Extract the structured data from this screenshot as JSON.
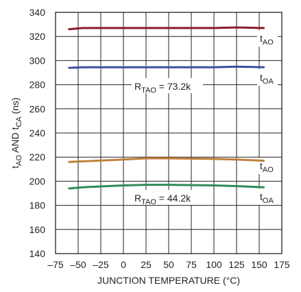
{
  "chart_data": {
    "type": "line",
    "xlabel": "JUNCTION TEMPERATURE (°C)",
    "ylabel": {
      "pre": "t",
      "sub1": "AO",
      "mid": " AND t",
      "sub2": "CA",
      "post": " (ns)"
    },
    "xlim": [
      -75,
      175
    ],
    "ylim": [
      140,
      340
    ],
    "xticks": [
      -75,
      -50,
      -25,
      0,
      25,
      50,
      75,
      100,
      125,
      150,
      175
    ],
    "yticks": [
      140,
      160,
      180,
      200,
      220,
      240,
      260,
      280,
      300,
      320,
      340
    ],
    "x_tick_labels": [
      "–75",
      "–50",
      "–25",
      "0",
      "25",
      "50",
      "75",
      "100",
      "125",
      "150",
      "175"
    ],
    "y_tick_labels": [
      "140",
      "160",
      "180",
      "200",
      "220",
      "240",
      "260",
      "280",
      "300",
      "320",
      "340"
    ],
    "grid": true,
    "series": [
      {
        "color": "#8b1a2b",
        "x": [
          -60,
          -45,
          0,
          25,
          50,
          100,
          125,
          155
        ],
        "y": [
          326,
          327,
          327,
          327,
          327,
          327,
          327.5,
          327
        ]
      },
      {
        "color": "#3b4fa0",
        "x": [
          -60,
          -45,
          0,
          25,
          50,
          100,
          125,
          155
        ],
        "y": [
          294,
          294.5,
          294.5,
          294.5,
          294.5,
          294.5,
          295,
          294.5
        ]
      },
      {
        "color": "#c0803a",
        "x": [
          -60,
          -45,
          0,
          25,
          50,
          100,
          125,
          155
        ],
        "y": [
          216,
          216.5,
          218,
          219,
          219,
          218.5,
          218,
          217
        ]
      },
      {
        "color": "#2e8b57",
        "x": [
          -60,
          -45,
          0,
          25,
          50,
          100,
          125,
          155
        ],
        "y": [
          194,
          195,
          196.5,
          197,
          197,
          196.5,
          196,
          195
        ]
      }
    ],
    "annotations": [
      {
        "name": "rtao-73",
        "pre": "R",
        "sub": "TAO",
        "post": " = 73.2k"
      },
      {
        "name": "rtao-44",
        "pre": "R",
        "sub": "TAO",
        "post": " = 44.2k"
      },
      {
        "name": "tao-upper",
        "pre": "t",
        "sub": "AO",
        "post": ""
      },
      {
        "name": "toa-upper",
        "pre": "t",
        "sub": "OA",
        "post": ""
      },
      {
        "name": "tao-lower",
        "pre": "t",
        "sub": "AO",
        "post": ""
      },
      {
        "name": "toa-lower",
        "pre": "t",
        "sub": "OA",
        "post": ""
      }
    ]
  }
}
